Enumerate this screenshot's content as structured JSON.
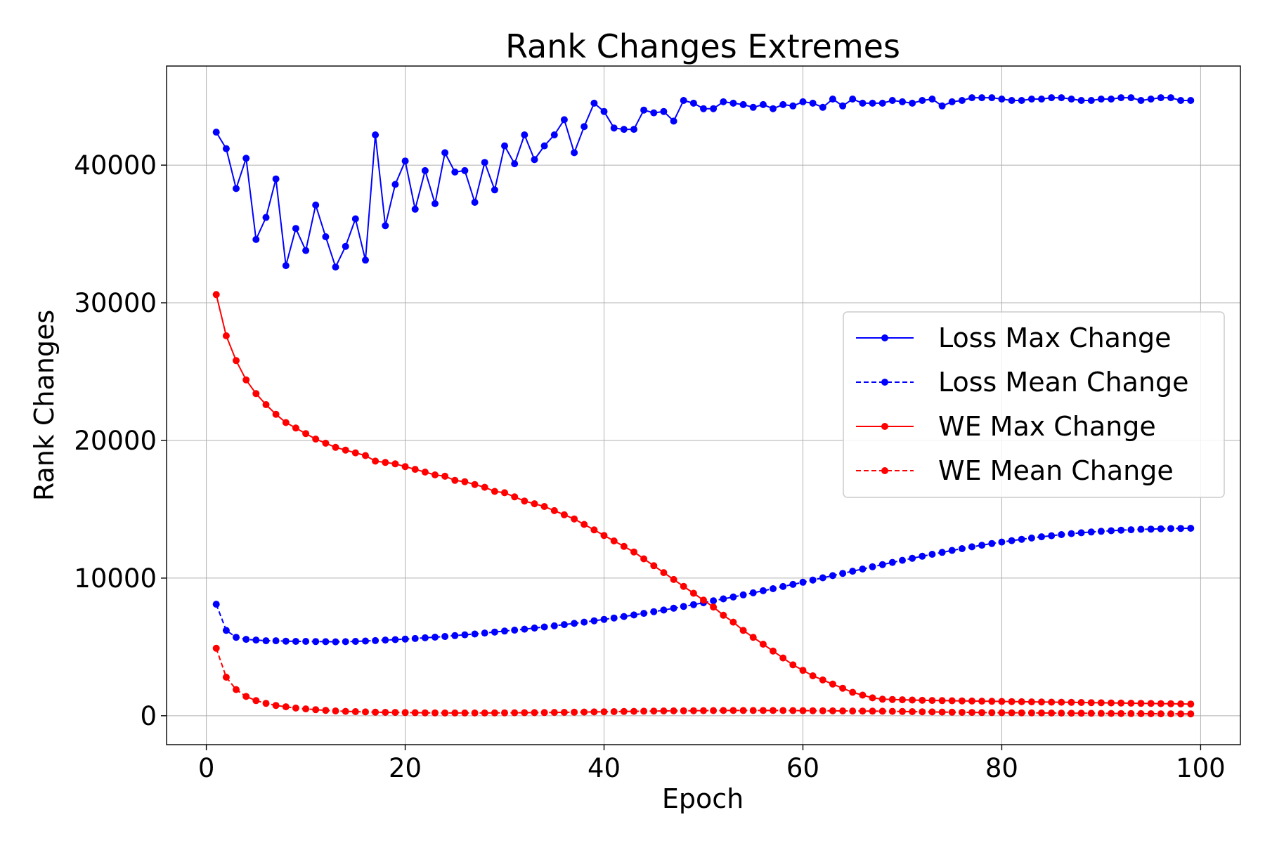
{
  "chart_data": {
    "type": "line",
    "title": "Rank Changes Extremes",
    "xlabel": "Epoch",
    "ylabel": "Rank Changes",
    "xlim": [
      -4,
      104
    ],
    "ylim": [
      -2100,
      47200
    ],
    "xticks": [
      0,
      20,
      40,
      60,
      80,
      100
    ],
    "yticks": [
      0,
      10000,
      20000,
      30000,
      40000
    ],
    "grid": true,
    "legend_position": "center-right",
    "x": [
      1,
      2,
      3,
      4,
      5,
      6,
      7,
      8,
      9,
      10,
      11,
      12,
      13,
      14,
      15,
      16,
      17,
      18,
      19,
      20,
      21,
      22,
      23,
      24,
      25,
      26,
      27,
      28,
      29,
      30,
      31,
      32,
      33,
      34,
      35,
      36,
      37,
      38,
      39,
      40,
      41,
      42,
      43,
      44,
      45,
      46,
      47,
      48,
      49,
      50,
      51,
      52,
      53,
      54,
      55,
      56,
      57,
      58,
      59,
      60,
      61,
      62,
      63,
      64,
      65,
      66,
      67,
      68,
      69,
      70,
      71,
      72,
      73,
      74,
      75,
      76,
      77,
      78,
      79,
      80,
      81,
      82,
      83,
      84,
      85,
      86,
      87,
      88,
      89,
      90,
      91,
      92,
      93,
      94,
      95,
      96,
      97,
      98,
      99
    ],
    "series": [
      {
        "name": "Loss Max Change",
        "color": "#0000ff",
        "linestyle": "solid",
        "values": [
          42400,
          41200,
          38300,
          40500,
          34600,
          36200,
          39000,
          32700,
          35400,
          33800,
          37100,
          34800,
          32600,
          34100,
          36100,
          33100,
          42200,
          35600,
          38600,
          40300,
          36800,
          39600,
          37200,
          40900,
          39500,
          39600,
          37300,
          40200,
          38200,
          41400,
          40100,
          42200,
          40400,
          41400,
          42200,
          43300,
          40900,
          42800,
          44500,
          43900,
          42700,
          42600,
          42600,
          44000,
          43800,
          43900,
          43200,
          44700,
          44500,
          44100,
          44100,
          44600,
          44500,
          44400,
          44200,
          44400,
          44100,
          44400,
          44300,
          44600,
          44500,
          44200,
          44800,
          44300,
          44800,
          44500,
          44500,
          44500,
          44700,
          44600,
          44500,
          44700,
          44800,
          44300,
          44600,
          44700,
          44900,
          44900,
          44900,
          44800,
          44700,
          44700,
          44800,
          44800,
          44900,
          44900,
          44800,
          44700,
          44700,
          44800,
          44800,
          44900,
          44900,
          44700,
          44800,
          44900,
          44900,
          44700,
          44700
        ]
      },
      {
        "name": "Loss Mean Change",
        "color": "#0000ff",
        "linestyle": "dashed",
        "values": [
          8100,
          6200,
          5700,
          5550,
          5500,
          5450,
          5450,
          5420,
          5400,
          5400,
          5390,
          5380,
          5370,
          5380,
          5400,
          5430,
          5460,
          5500,
          5530,
          5570,
          5610,
          5660,
          5710,
          5760,
          5820,
          5880,
          5940,
          6010,
          6080,
          6150,
          6220,
          6290,
          6370,
          6450,
          6530,
          6620,
          6710,
          6800,
          6900,
          7000,
          7100,
          7210,
          7320,
          7440,
          7560,
          7680,
          7810,
          7940,
          8070,
          8210,
          8350,
          8490,
          8630,
          8780,
          8930,
          9080,
          9230,
          9390,
          9540,
          9700,
          9860,
          10020,
          10180,
          10340,
          10500,
          10660,
          10820,
          10980,
          11140,
          11290,
          11440,
          11590,
          11730,
          11870,
          12010,
          12140,
          12270,
          12390,
          12510,
          12620,
          12720,
          12820,
          12910,
          13000,
          13080,
          13160,
          13230,
          13290,
          13350,
          13400,
          13440,
          13480,
          13510,
          13540,
          13560,
          13580,
          13600,
          13610,
          13620
        ]
      },
      {
        "name": "WE Max Change",
        "color": "#ff0000",
        "linestyle": "solid",
        "values": [
          30600,
          27600,
          25800,
          24400,
          23400,
          22600,
          21900,
          21300,
          20900,
          20500,
          20100,
          19800,
          19500,
          19300,
          19100,
          18900,
          18500,
          18400,
          18300,
          18100,
          17900,
          17700,
          17500,
          17400,
          17100,
          17000,
          16800,
          16600,
          16300,
          16200,
          15900,
          15600,
          15400,
          15200,
          14900,
          14600,
          14300,
          13900,
          13500,
          13100,
          12700,
          12300,
          11900,
          11400,
          10900,
          10400,
          9900,
          9400,
          8900,
          8400,
          7900,
          7300,
          6800,
          6200,
          5700,
          5200,
          4700,
          4200,
          3700,
          3300,
          2900,
          2600,
          2300,
          2000,
          1700,
          1500,
          1300,
          1200,
          1180,
          1160,
          1140,
          1120,
          1110,
          1100,
          1090,
          1080,
          1070,
          1060,
          1050,
          1040,
          1030,
          1020,
          1010,
          1000,
          990,
          980,
          970,
          960,
          950,
          940,
          930,
          920,
          910,
          900,
          890,
          880,
          870,
          860,
          850
        ]
      },
      {
        "name": "WE Mean Change",
        "color": "#ff0000",
        "linestyle": "dashed",
        "values": [
          4900,
          2800,
          1900,
          1400,
          1100,
          900,
          750,
          650,
          560,
          500,
          440,
          390,
          350,
          320,
          300,
          280,
          260,
          250,
          240,
          230,
          220,
          210,
          205,
          200,
          200,
          200,
          200,
          200,
          205,
          210,
          215,
          220,
          225,
          230,
          240,
          250,
          260,
          270,
          280,
          290,
          300,
          310,
          320,
          330,
          340,
          350,
          355,
          360,
          365,
          370,
          375,
          380,
          380,
          380,
          380,
          380,
          380,
          380,
          375,
          370,
          365,
          360,
          355,
          350,
          345,
          340,
          335,
          330,
          320,
          310,
          300,
          290,
          280,
          270,
          260,
          250,
          240,
          230,
          225,
          220,
          215,
          210,
          205,
          200,
          195,
          190,
          185,
          180,
          175,
          170,
          165,
          160,
          155,
          150,
          145,
          140,
          138,
          136,
          135
        ]
      }
    ]
  }
}
